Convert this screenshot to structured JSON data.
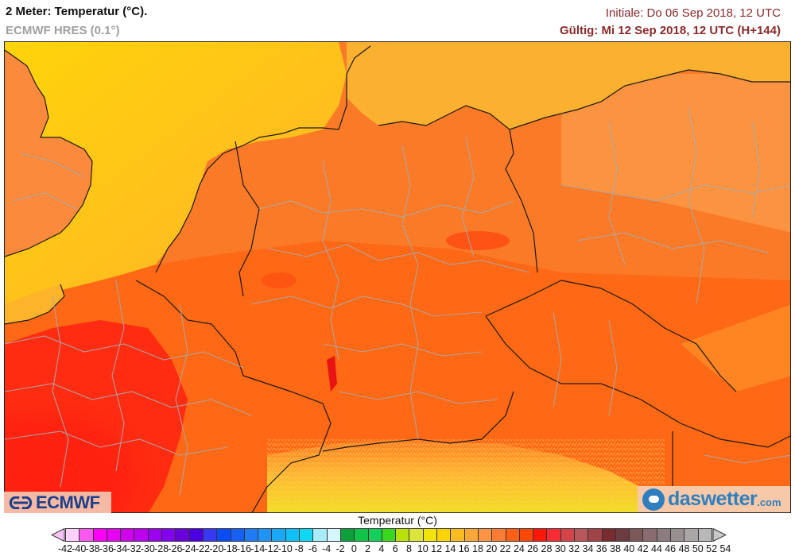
{
  "header": {
    "title": "2 Meter: Temperatur (°C).",
    "model": "ECMWF HRES (0.1°)",
    "initial": "Initiale: Do 06 Sep 2018, 12 UTC",
    "valid": "Gültig: Mi 12 Sep 2018, 12 UTC (H+144)"
  },
  "logos": {
    "left": "ECMWF",
    "right_main": "daswetter",
    "right_suffix": ".com"
  },
  "map": {
    "region": "Central Europe (Germany, Benelux, France, Czechia, Austria, Poland)",
    "colors": {
      "sea_north": "#ffc21a",
      "sea_baltic": "#fbaf2f",
      "land_uk": "#fb8a3c",
      "germany_north": "#fb7d2a",
      "germany_central": "#ff6410",
      "france_central": "#ff1c10",
      "alps_high": "#f2e21a",
      "border_country": "#1a1a1a",
      "border_region": "#a8a8a8"
    }
  },
  "colorbar": {
    "title": "Temperatur (°C)",
    "labels": [
      "-42",
      "-40",
      "-38",
      "-36",
      "-34",
      "-32",
      "-30",
      "-28",
      "-26",
      "-24",
      "-22",
      "-20",
      "-18",
      "-16",
      "-14",
      "-12",
      "-10",
      "-8",
      "-6",
      "-4",
      "-2",
      "0",
      "2",
      "4",
      "6",
      "8",
      "10",
      "12",
      "14",
      "16",
      "18",
      "20",
      "22",
      "24",
      "26",
      "28",
      "30",
      "32",
      "34",
      "36",
      "38",
      "40",
      "42",
      "44",
      "46",
      "48",
      "50",
      "52",
      "54"
    ],
    "colors": [
      "#fdd0fd",
      "#fb58f0",
      "#ff00ff",
      "#e800f4",
      "#d000ee",
      "#bc00f0",
      "#9d00f0",
      "#8200ee",
      "#6900dc",
      "#4a00e0",
      "#3a38f4",
      "#0a4cf8",
      "#1660f8",
      "#1e7cf6",
      "#2094f6",
      "#18a8f6",
      "#10c0f8",
      "#10d8f4",
      "#a8ecfc",
      "#d4f6fc",
      "#0ba03a",
      "#10c448",
      "#14d05a",
      "#3ad81c",
      "#b8e00a",
      "#dae43a",
      "#f0e40a",
      "#fed408",
      "#fcbc20",
      "#fca838",
      "#fd9444",
      "#fc7c34",
      "#fe6016",
      "#fe4808",
      "#ff1808",
      "#f82c34",
      "#d44448",
      "#b8585c",
      "#a04448",
      "#782c30",
      "#6c3c40",
      "#7c5858",
      "#886c70",
      "#8c7c80",
      "#989090",
      "#aaa6a6",
      "#b8b8b8"
    ],
    "under_color": "#f8c4f8",
    "over_color": "#c8c8c8"
  }
}
